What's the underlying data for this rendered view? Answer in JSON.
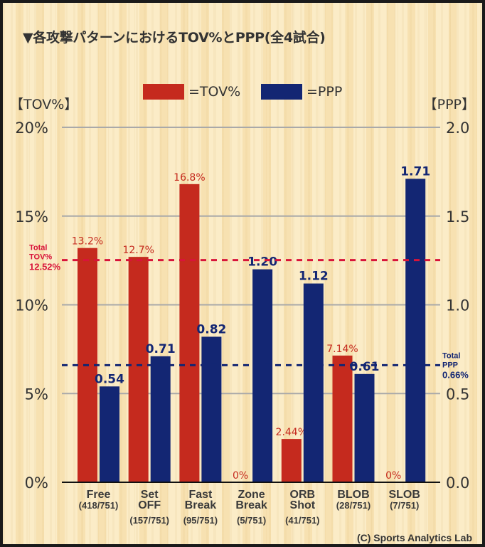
{
  "title": "▼各攻撃パターンにおけるTOV%とPPP(全4試合)",
  "legend": [
    {
      "label": "=TOV%",
      "color": "#c52a1e"
    },
    {
      "label": "=PPP",
      "color": "#132673"
    }
  ],
  "left_axis_title": "【TOV%】",
  "right_axis_title": "【PPP】",
  "credit": "(C) Sports Analytics Lab",
  "chart_data": {
    "type": "bar",
    "title": "▼各攻撃パターンにおけるTOV%とPPP(全4試合)",
    "categories": [
      {
        "name_lines": [
          "Free"
        ],
        "count": "(418/751)"
      },
      {
        "name_lines": [
          "Set",
          "OFF"
        ],
        "count": "(157/751)"
      },
      {
        "name_lines": [
          "Fast",
          "Break"
        ],
        "count": "(95/751)"
      },
      {
        "name_lines": [
          "Zone",
          "Break"
        ],
        "count": "(5/751)"
      },
      {
        "name_lines": [
          "ORB",
          "Shot"
        ],
        "count": "(41/751)"
      },
      {
        "name_lines": [
          "BLOB"
        ],
        "count": "(28/751)"
      },
      {
        "name_lines": [
          "SLOB"
        ],
        "count": "(7/751)"
      }
    ],
    "series": [
      {
        "name": "TOV%",
        "axis": "left",
        "color": "#c52a1e",
        "values": [
          13.2,
          12.7,
          16.8,
          0,
          2.44,
          7.14,
          0
        ],
        "labels": [
          "13.2%",
          "12.7%",
          "16.8%",
          "0%",
          "2.44%",
          "7.14%",
          "0%"
        ]
      },
      {
        "name": "PPP",
        "axis": "right",
        "color": "#132673",
        "values": [
          0.54,
          0.71,
          0.82,
          1.2,
          1.12,
          0.61,
          1.71
        ],
        "labels": [
          "0.54",
          "0.71",
          "0.82",
          "1.20",
          "1.12",
          "0.61",
          "1.71"
        ]
      }
    ],
    "left_axis": {
      "label": "【TOV%】",
      "range": [
        0,
        20
      ],
      "ticks": [
        0,
        5,
        10,
        15,
        20
      ],
      "tick_labels": [
        "0%",
        "5%",
        "10%",
        "15%",
        "20%"
      ]
    },
    "right_axis": {
      "label": "【PPP】",
      "range": [
        0,
        2.0
      ],
      "ticks": [
        0,
        0.5,
        1.0,
        1.5,
        2.0
      ],
      "tick_labels": [
        "0.0",
        "0.5",
        "1.0",
        "1.5",
        "2.0"
      ]
    },
    "grid": true,
    "legend_position": "top-center",
    "reference_lines": [
      {
        "axis": "left",
        "value": 12.52,
        "color": "#d8143a",
        "style": "dashed",
        "label_lines": [
          "Total",
          "TOV%",
          "12.52%"
        ],
        "label_side": "left"
      },
      {
        "axis": "right",
        "value": 0.66,
        "color": "#132673",
        "style": "dashed",
        "label_lines": [
          "Total",
          "PPP",
          "0.66%"
        ],
        "label_side": "right"
      }
    ]
  }
}
